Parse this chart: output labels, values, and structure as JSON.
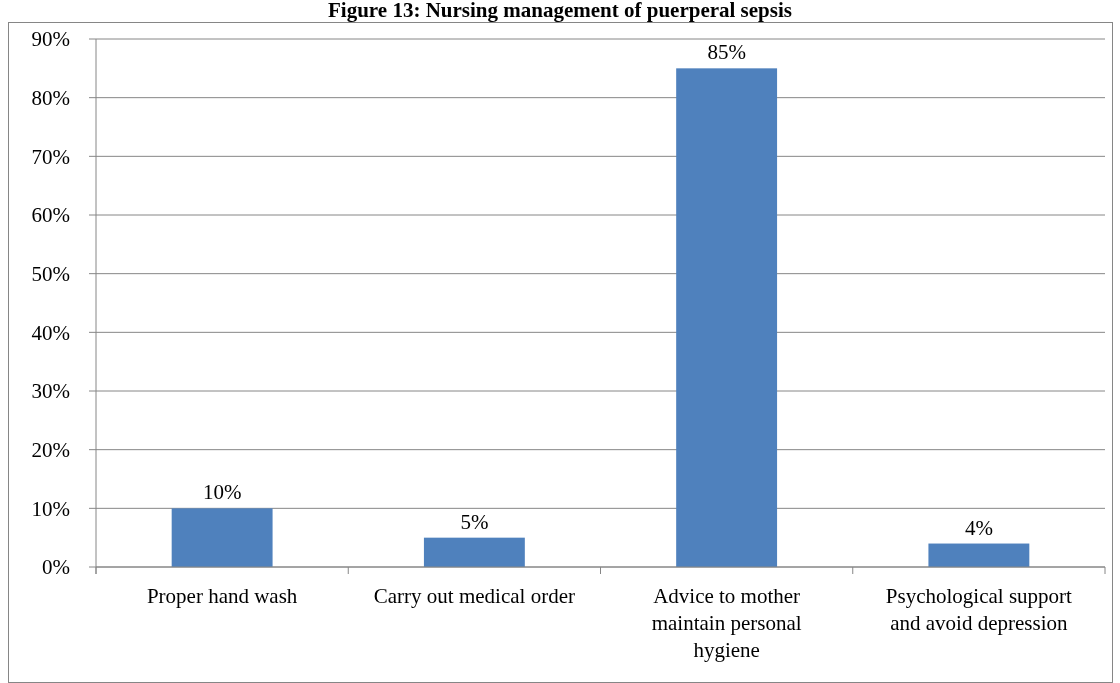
{
  "chart_data": {
    "type": "bar",
    "title": "Figure 13: Nursing management of puerperal sepsis",
    "categories": [
      "Proper hand wash",
      "Carry out medical order",
      "Advice to mother maintain personal hygiene",
      "Psychological support and avoid depression"
    ],
    "values": [
      10,
      5,
      85,
      4
    ],
    "value_labels": [
      "10%",
      "5%",
      "85%",
      "4%"
    ],
    "color": "#4f81bd",
    "ylim": [
      0,
      90
    ],
    "yticks": [
      {
        "value": 0,
        "label": "0%"
      },
      {
        "value": 10,
        "label": "10%"
      },
      {
        "value": 20,
        "label": "20%"
      },
      {
        "value": 30,
        "label": "30%"
      },
      {
        "value": 40,
        "label": "40%"
      },
      {
        "value": 50,
        "label": "50%"
      },
      {
        "value": 60,
        "label": "60%"
      },
      {
        "value": 70,
        "label": "70%"
      },
      {
        "value": 80,
        "label": "80%"
      },
      {
        "value": 90,
        "label": "90%"
      }
    ],
    "grid": "y"
  }
}
